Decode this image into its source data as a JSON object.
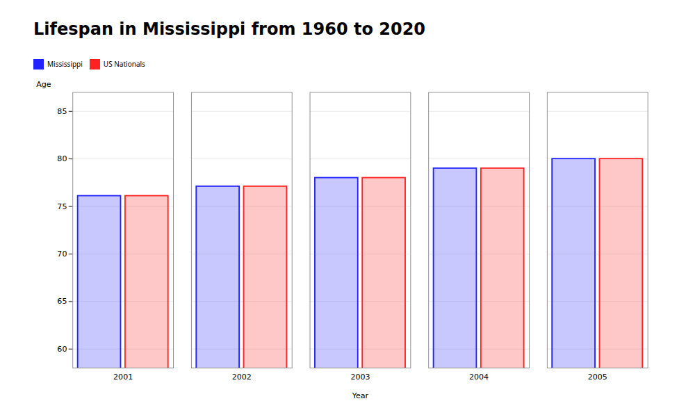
{
  "chart_data": {
    "type": "bar",
    "title": "Lifespan in Mississippi from 1960 to 2020",
    "xlabel": "Year",
    "ylabel": "Age",
    "categories": [
      "2001",
      "2002",
      "2003",
      "2004",
      "2005"
    ],
    "series": [
      {
        "name": "Mississippi",
        "color": "#2222ff",
        "values": [
          76.1,
          77.1,
          78.0,
          79.0,
          80.0
        ]
      },
      {
        "name": "US Nationals",
        "color": "#ff2222",
        "values": [
          76.1,
          77.1,
          78.0,
          79.0,
          80.0
        ]
      }
    ],
    "ylim": [
      58,
      87
    ],
    "yticks": [
      60,
      65,
      70,
      75,
      80,
      85
    ],
    "grid": true,
    "legend": "top"
  }
}
